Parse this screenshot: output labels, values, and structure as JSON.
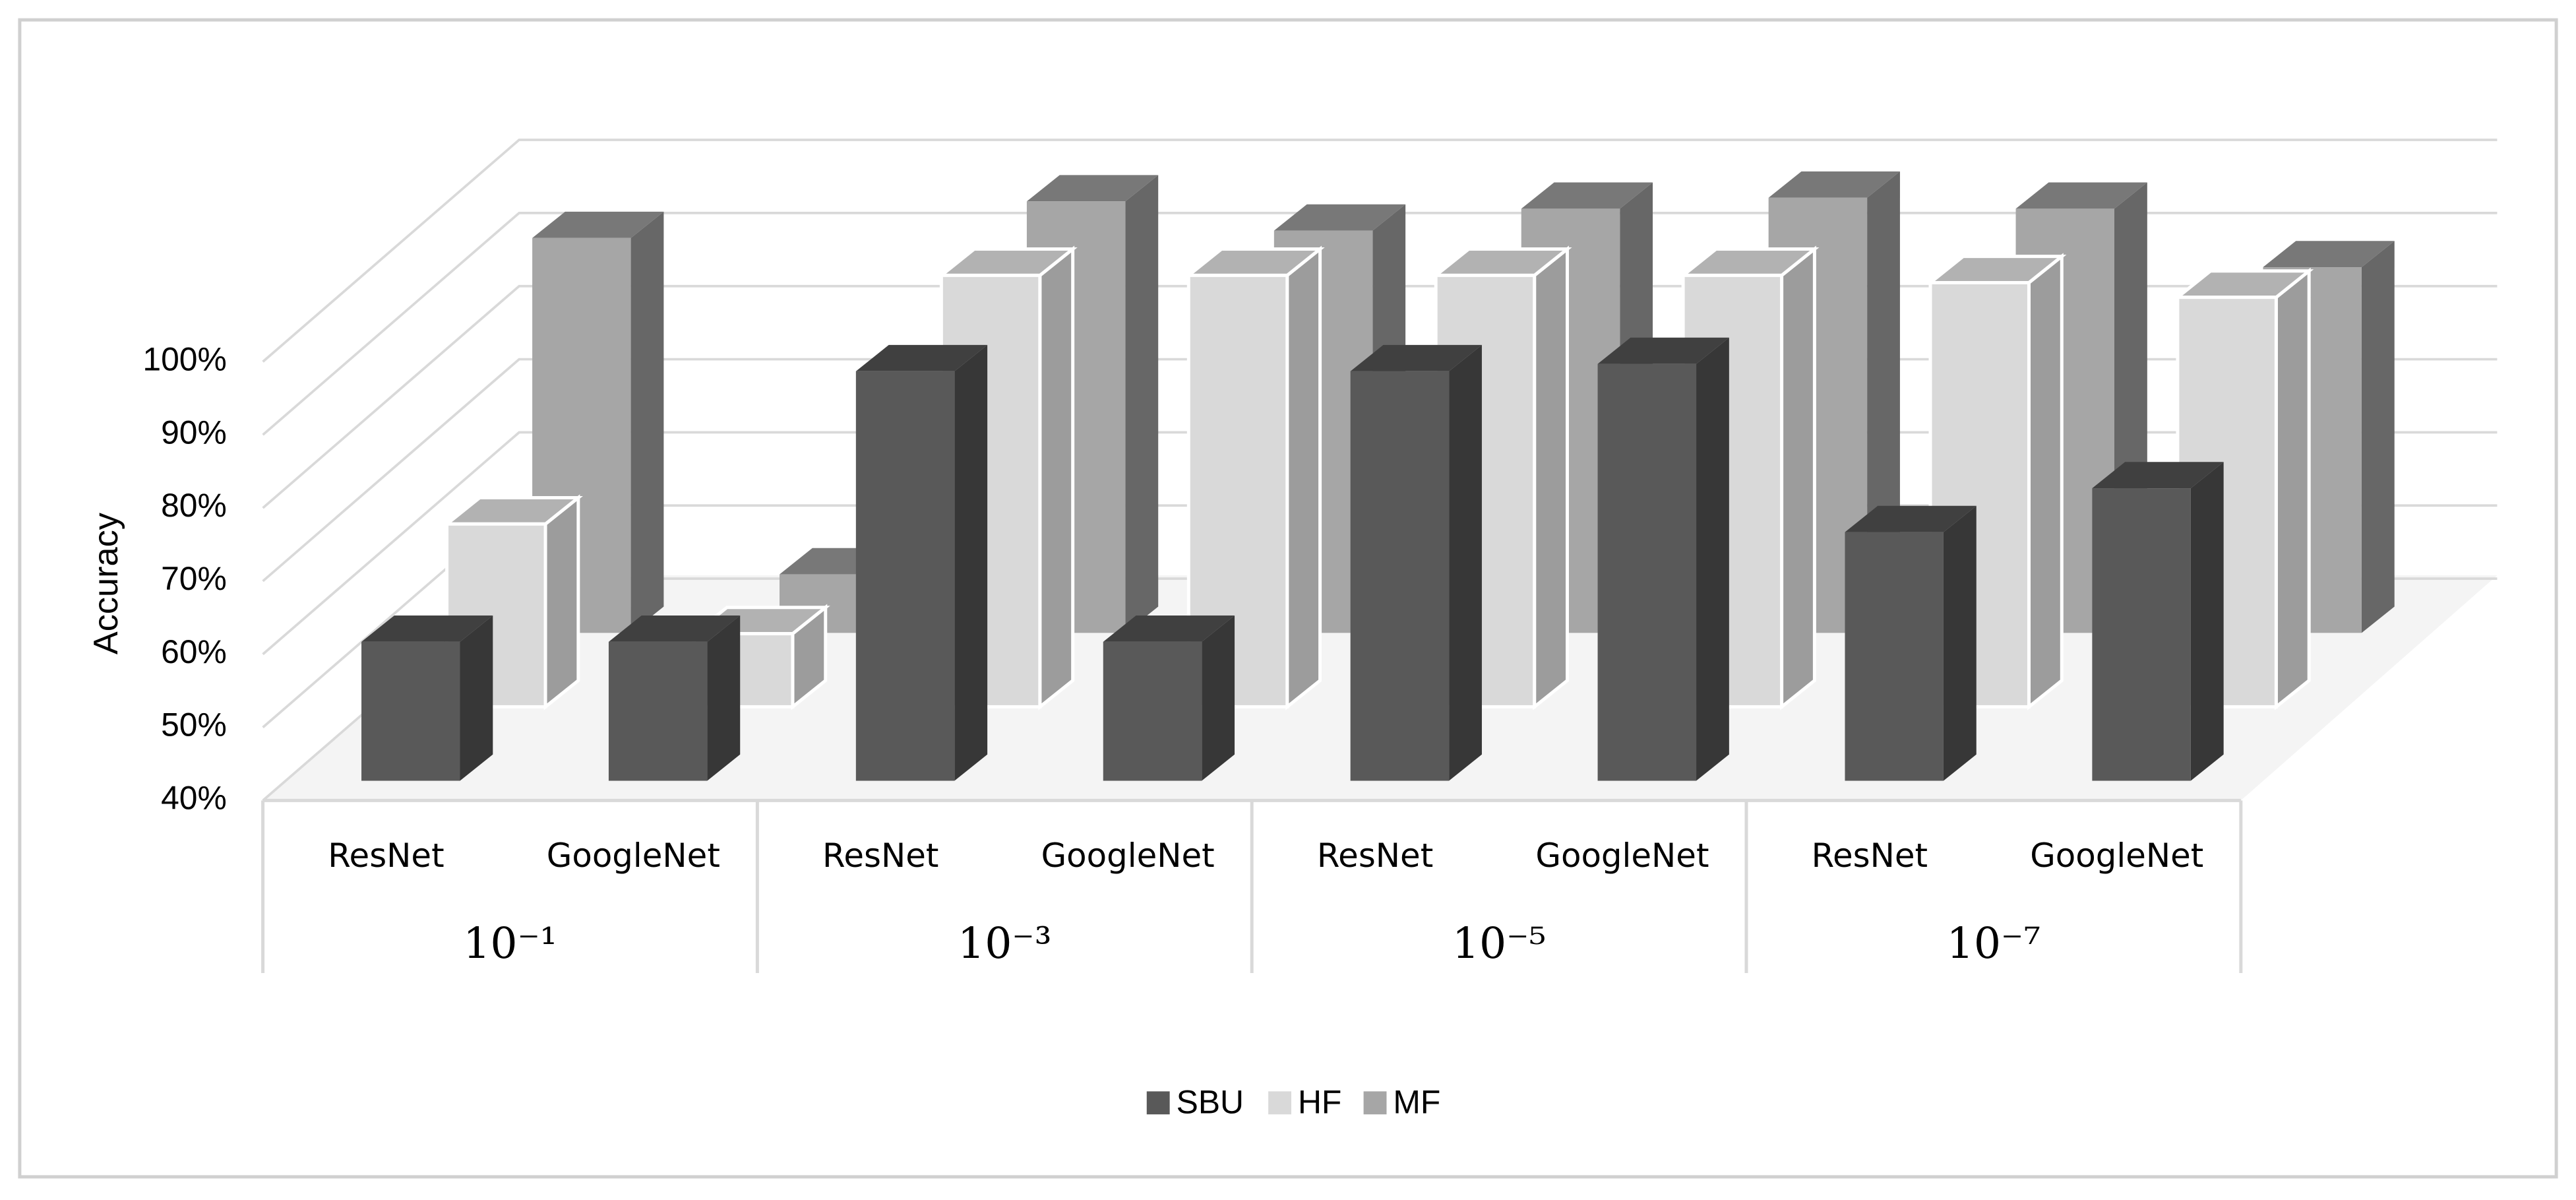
{
  "chart_data": {
    "type": "bar3d",
    "y_label": "Accuracy",
    "categories": [
      "ResNet",
      "GoogleNet",
      "ResNet",
      "GoogleNet",
      "ResNet",
      "GoogleNet",
      "ResNet",
      "GoogleNet"
    ],
    "groups": [
      "10⁻¹",
      "10⁻³",
      "10⁻⁵",
      "10⁻⁷"
    ],
    "series": [
      {
        "name": "SBU",
        "color": "#595959",
        "values": [
          59,
          59,
          96,
          59,
          96,
          97,
          74,
          80
        ]
      },
      {
        "name": "HF",
        "color": "#d9d9d9",
        "values": [
          65,
          50,
          99,
          99,
          99,
          99,
          98,
          96
        ]
      },
      {
        "name": "MF",
        "color": "#a6a6a6",
        "values": [
          94,
          48,
          99,
          95,
          98,
          99.5,
          98,
          90
        ]
      }
    ],
    "ylim": [
      40,
      100
    ],
    "yticks": [
      {
        "value": 40,
        "label": "40%"
      },
      {
        "value": 50,
        "label": "50%"
      },
      {
        "value": 60,
        "label": "60%"
      },
      {
        "value": 70,
        "label": "70%"
      },
      {
        "value": 80,
        "label": "80%"
      },
      {
        "value": 90,
        "label": "90%"
      },
      {
        "value": 100,
        "label": "100%"
      }
    ],
    "grid": true,
    "legend": "bottom"
  }
}
